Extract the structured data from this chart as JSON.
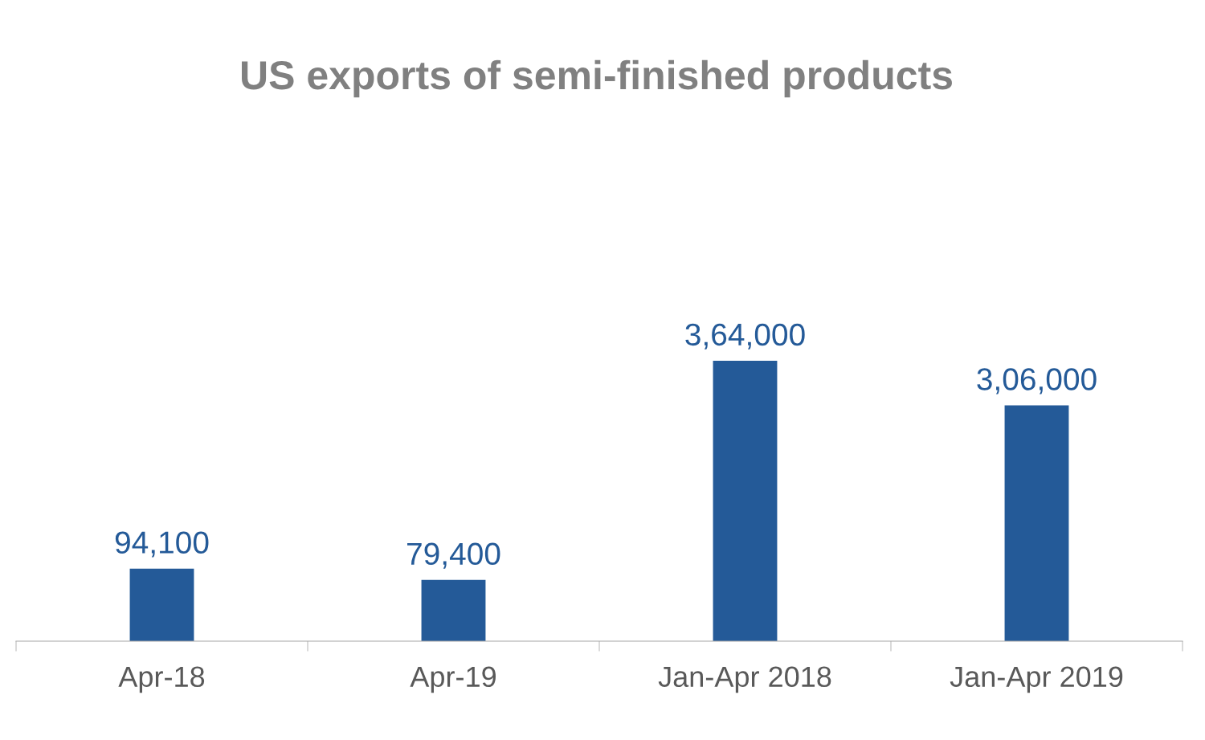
{
  "chart_data": {
    "type": "bar",
    "title": "US exports of semi-finished products",
    "categories": [
      "Apr-18",
      "Apr-19",
      "Jan-Apr 2018",
      "Jan-Apr 2019"
    ],
    "values": [
      94100,
      79400,
      364000,
      306000
    ],
    "value_labels": [
      "94,100",
      "79,400",
      "3,64,000",
      "3,06,000"
    ],
    "color": "#245a98",
    "grid": false,
    "legend": false
  }
}
